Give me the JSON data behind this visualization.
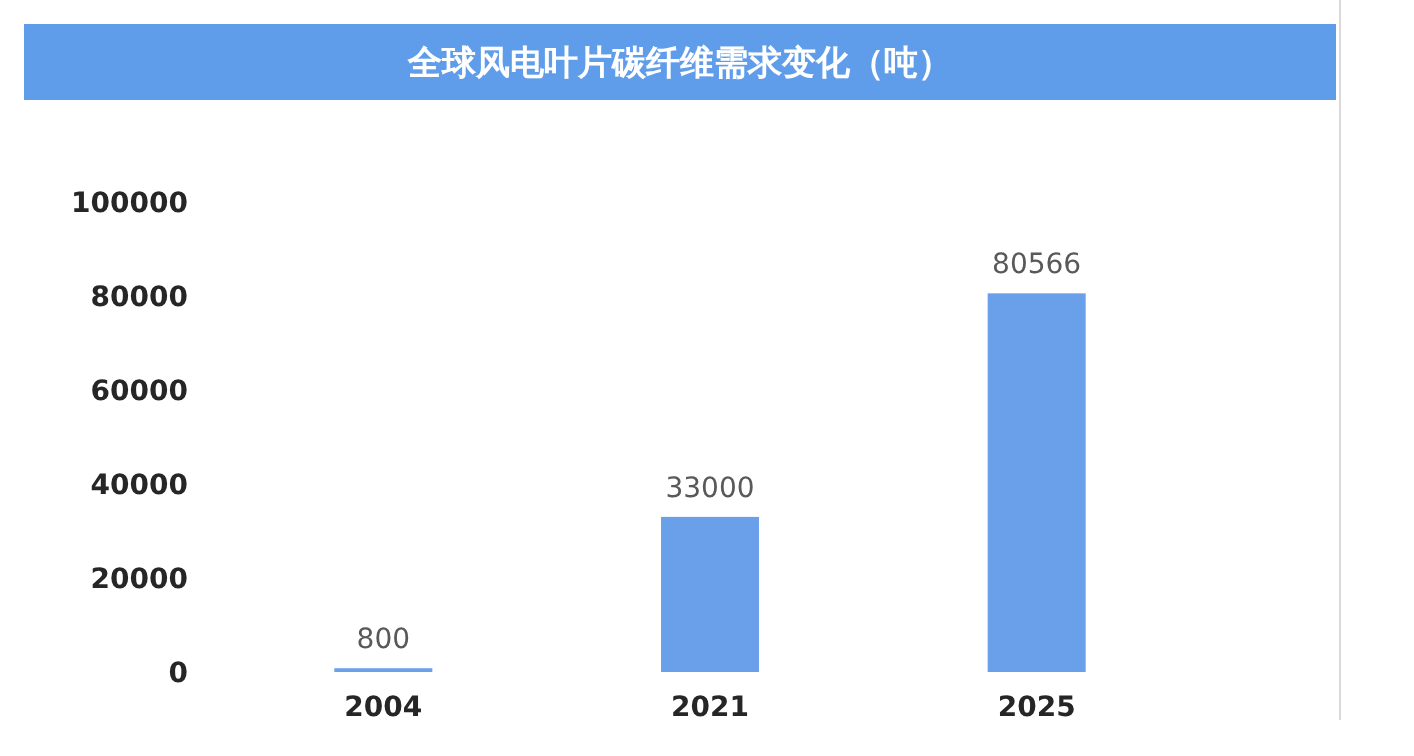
{
  "chart_data": {
    "type": "bar",
    "title": "全球风电叶片碳纤维需求变化（吨）",
    "categories": [
      "2004",
      "2021",
      "2025"
    ],
    "values": [
      800,
      33000,
      80566
    ],
    "color": "#6a9fe9",
    "ylim": [
      0,
      100000
    ],
    "yticks": [
      0,
      20000,
      40000,
      60000,
      80000,
      100000
    ],
    "data_labels": true,
    "grid": false
  }
}
